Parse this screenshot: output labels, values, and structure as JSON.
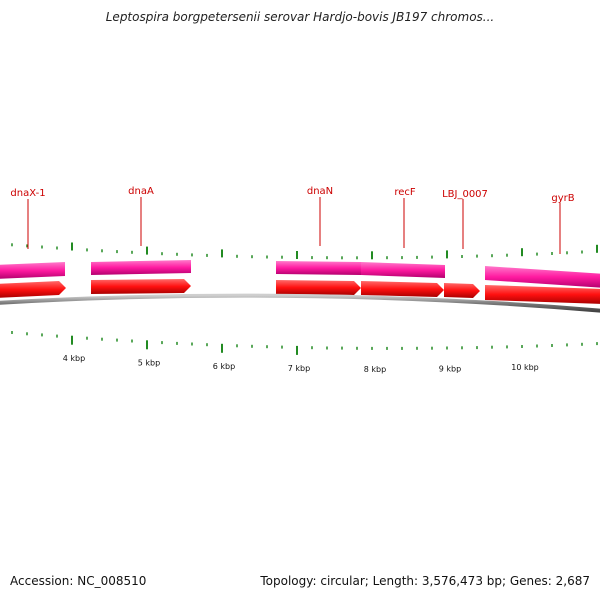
{
  "title": "Leptospira borgpetersenii serovar Hardjo-bovis JB197 chromos...",
  "footer": {
    "accession": "Accession: NC_008510",
    "info": "Topology: circular; Length: 3,576,473 bp; Genes: 2,687"
  },
  "colors": {
    "gene_label": "#cc0000",
    "forward_gene": "#ff1aa0",
    "cds": "#ff1010",
    "tick": "#228b22",
    "backbone": "#777777"
  },
  "genes": [
    {
      "name": "dnaX-1"
    },
    {
      "name": "dnaA"
    },
    {
      "name": "dnaN"
    },
    {
      "name": "recF"
    },
    {
      "name": "LBJ_0007"
    },
    {
      "name": "gyrB"
    }
  ],
  "scale_labels": [
    "4 kbp",
    "5 kbp",
    "6 kbp",
    "7 kbp",
    "8 kbp",
    "9 kbp",
    "10 kbp"
  ]
}
